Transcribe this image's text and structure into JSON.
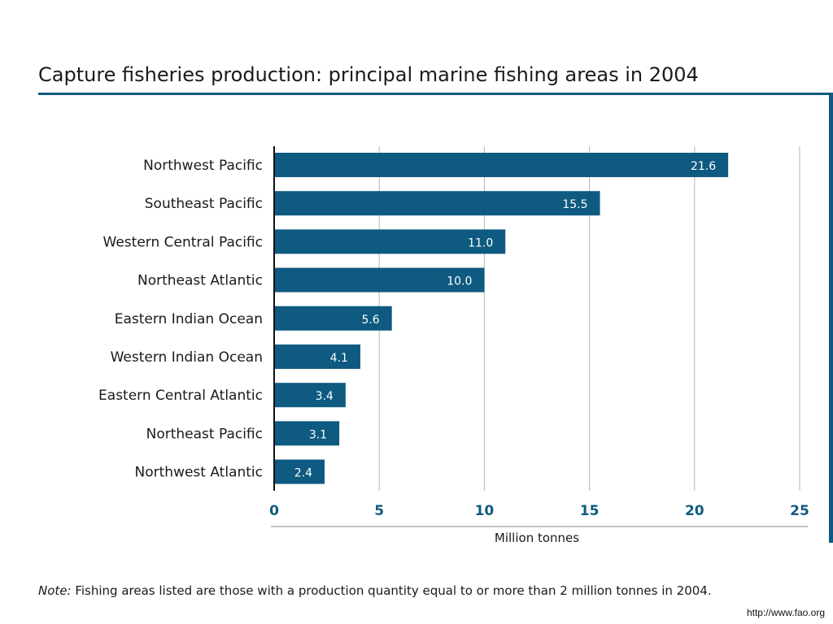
{
  "title": "Capture fisheries production: principal marine fishing areas in 2004",
  "note_label": "Note:",
  "note_text": " Fishing areas listed are those with a production quantity equal to or more than 2 million tonnes in 2004.",
  "source": "http://www.fao.org",
  "colors": {
    "bar": "#0e5a80",
    "axis_tick": "#0e5a80",
    "grid": "#b5b5b5",
    "rule": "#0e5a80"
  },
  "chart_data": {
    "type": "bar",
    "orientation": "horizontal",
    "categories": [
      "Northwest Pacific",
      "Southeast Pacific",
      "Western Central Pacific",
      "Northeast Atlantic",
      "Eastern Indian Ocean",
      "Western Indian Ocean",
      "Eastern Central Atlantic",
      "Northeast Pacific",
      "Northwest Atlantic"
    ],
    "values": [
      21.6,
      15.5,
      11.0,
      10.0,
      5.6,
      4.1,
      3.4,
      3.1,
      2.4
    ],
    "value_labels": [
      "21.6",
      "15.5",
      "11.0",
      "10.0",
      "5.6",
      "4.1",
      "3.4",
      "3.1",
      "2.4"
    ],
    "xlabel": "Million tonnes",
    "xlim": [
      0,
      25
    ],
    "xticks": [
      0,
      5,
      10,
      15,
      20,
      25
    ],
    "xtick_labels": [
      "0",
      "5",
      "10",
      "15",
      "20",
      "25"
    ],
    "grid": true
  }
}
